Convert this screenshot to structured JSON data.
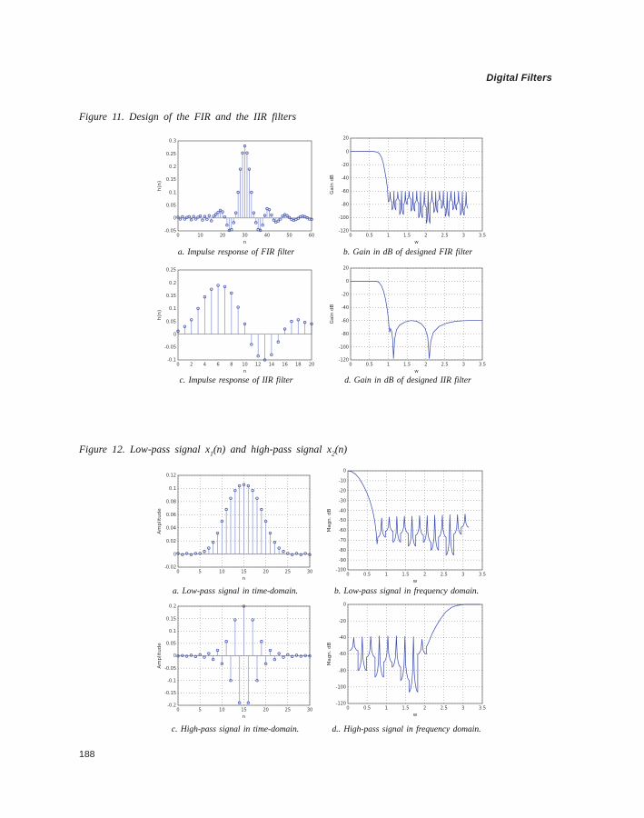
{
  "page": {
    "header": "Digital Filters",
    "page_number": "188"
  },
  "figure11": {
    "caption": "Figure 11. Design of the FIR and the IIR filters"
  },
  "figure12": {
    "caption_pre": "Figure 12. Low-pass signal x",
    "caption_sub1": "1",
    "caption_mid": "(n) and high-pass signal x",
    "caption_sub2": "2",
    "caption_post": "(n)"
  },
  "chart_data": [
    {
      "id": "fir-impulse",
      "type": "stem",
      "grid": false,
      "caption": "a. Impulse response of FIR filter",
      "xlabel": "n",
      "ylabel": "h(n)",
      "xlim": [
        0,
        60
      ],
      "ylim": [
        -0.05,
        0.3
      ],
      "xticks": [
        0,
        10,
        20,
        30,
        40,
        50,
        60
      ],
      "yticks": [
        0.3,
        0.25,
        0.2,
        0.15,
        0.1,
        0.05,
        0,
        -0.05
      ],
      "n0": 0,
      "values": [
        0.003,
        -0.004,
        0.005,
        -0.004,
        0.002,
        0.005,
        -0.007,
        0.006,
        -0.004,
        0.003,
        0.008,
        -0.008,
        0.006,
        -0.005,
        0.009,
        -0.011,
        0.007,
        0.014,
        0.022,
        0.03,
        0.024,
        0.004,
        -0.028,
        -0.048,
        -0.045,
        -0.018,
        0.02,
        0.1,
        0.19,
        0.253,
        0.28,
        0.253,
        0.19,
        0.1,
        0.02,
        -0.018,
        -0.045,
        -0.048,
        -0.028,
        0.01,
        0.036,
        0.032,
        0.012,
        -0.008,
        -0.016,
        -0.012,
        -0.004,
        0.008,
        0.013,
        0.009,
        0.002,
        -0.006,
        -0.009,
        -0.006,
        -0.001,
        0.005,
        0.008,
        0.005,
        0.001,
        -0.004,
        -0.005
      ]
    },
    {
      "id": "fir-gain",
      "type": "line",
      "grid": true,
      "caption": "b. Gain in dB of designed FIR filter",
      "xlabel": "w",
      "ylabel": "Gain dB",
      "xlim": [
        0,
        3.5
      ],
      "ylim": [
        -120,
        20
      ],
      "xticks": [
        0,
        0.5,
        1,
        1.5,
        2,
        2.5,
        3,
        3.5
      ],
      "yticks": [
        20,
        0,
        -20,
        -40,
        -60,
        -80,
        -100,
        -120
      ],
      "segments": [
        {
          "type": "points",
          "pts": [
            [
              0,
              0
            ],
            [
              0.6,
              0
            ],
            [
              0.7,
              -1
            ],
            [
              0.76,
              -3
            ],
            [
              0.82,
              -9
            ],
            [
              0.87,
              -18
            ],
            [
              0.91,
              -30
            ],
            [
              0.95,
              -44
            ],
            [
              0.98,
              -56
            ]
          ]
        },
        {
          "type": "lobes",
          "from": 1.0,
          "to": 3.12,
          "tops": [
            -61,
            -60,
            -61,
            -59.5,
            -60.5,
            -60,
            -61,
            -59.5,
            -60,
            -61,
            -60,
            -59.5,
            -61,
            -60,
            -59.5,
            -60.5,
            -60,
            -61,
            -60,
            -60.5,
            -61
          ],
          "depths": [
            -76,
            -88,
            -74,
            -95,
            -80,
            -72,
            -90,
            -78,
            -100,
            -84,
            -108,
            -78,
            -92,
            -75,
            -86,
            -98,
            -76,
            -88,
            -80,
            -96,
            -86
          ]
        }
      ]
    },
    {
      "id": "iir-impulse",
      "type": "stem",
      "grid": false,
      "caption": "c. Impulse response of IIR filter",
      "xlabel": "n",
      "ylabel": "h(n)",
      "xlim": [
        0,
        20
      ],
      "ylim": [
        -0.1,
        0.25
      ],
      "xticks": [
        0,
        2,
        4,
        6,
        8,
        10,
        12,
        14,
        16,
        18,
        20
      ],
      "yticks": [
        0.25,
        0.2,
        0.15,
        0.1,
        0.05,
        0,
        -0.05,
        -0.1
      ],
      "n0": 0,
      "values": [
        0.012,
        0.03,
        0.056,
        0.1,
        0.145,
        0.175,
        0.19,
        0.185,
        0.16,
        0.105,
        0.04,
        -0.04,
        -0.085,
        -0.105,
        -0.08,
        -0.03,
        0.02,
        0.05,
        0.056,
        0.046,
        0.04
      ]
    },
    {
      "id": "iir-gain",
      "type": "line",
      "grid": true,
      "caption": "d. Gain in dB of designed IIR filter",
      "xlabel": "w",
      "ylabel": "Gain dB",
      "xlim": [
        0,
        3.5
      ],
      "ylim": [
        -120,
        20
      ],
      "xticks": [
        0,
        0.5,
        1,
        1.5,
        2,
        2.5,
        3,
        3.5
      ],
      "yticks": [
        20,
        0,
        -20,
        -40,
        -60,
        -80,
        -100,
        -120
      ],
      "segments": [
        {
          "type": "points",
          "pts": [
            [
              0,
              0
            ],
            [
              0.68,
              0
            ],
            [
              0.75,
              -1.5
            ],
            [
              0.82,
              -7
            ],
            [
              0.88,
              -16
            ],
            [
              0.93,
              -28
            ],
            [
              0.97,
              -42
            ],
            [
              1.0,
              -55
            ],
            [
              1.02,
              -70
            ],
            [
              1.04,
              -78
            ],
            [
              1.06,
              -72
            ],
            [
              1.09,
              -76
            ],
            [
              1.12,
              -90
            ],
            [
              1.14,
              -118
            ],
            [
              1.17,
              -88
            ],
            [
              1.22,
              -74
            ],
            [
              1.3,
              -67
            ],
            [
              1.45,
              -62
            ],
            [
              1.6,
              -60
            ],
            [
              1.75,
              -61
            ],
            [
              1.88,
              -65
            ],
            [
              1.98,
              -72
            ],
            [
              2.05,
              -85
            ],
            [
              2.09,
              -118
            ],
            [
              2.13,
              -92
            ],
            [
              2.2,
              -78
            ],
            [
              2.35,
              -69
            ],
            [
              2.55,
              -64
            ],
            [
              2.8,
              -61
            ],
            [
              3.1,
              -60
            ],
            [
              3.5,
              -60
            ]
          ]
        }
      ]
    },
    {
      "id": "lp-time",
      "type": "stem",
      "grid": true,
      "caption": "a. Low-pass signal in time-domain.",
      "xlabel": "n",
      "ylabel": "Amplitude",
      "xlim": [
        0,
        30
      ],
      "ylim": [
        -0.02,
        0.12
      ],
      "xticks": [
        0,
        5,
        10,
        15,
        20,
        25,
        30
      ],
      "yticks": [
        0.12,
        0.1,
        0.08,
        0.06,
        0.04,
        0.02,
        0,
        -0.02
      ],
      "n0": 0,
      "values": [
        0.001,
        -0.001,
        0.001,
        -0.001,
        0.001,
        0.001,
        0.004,
        0.009,
        0.018,
        0.032,
        0.05,
        0.068,
        0.085,
        0.097,
        0.104,
        0.106,
        0.104,
        0.097,
        0.085,
        0.068,
        0.05,
        0.032,
        0.018,
        0.009,
        0.004,
        0.001,
        -0.001,
        0.001,
        -0.001,
        0.001,
        -0.001
      ]
    },
    {
      "id": "lp-freq",
      "type": "line",
      "grid": true,
      "caption": "b. Low-pass signal in frequency domain.",
      "xlabel": "w",
      "ylabel": "Magn. dB",
      "xlim": [
        0,
        3.5
      ],
      "ylim": [
        -100,
        0
      ],
      "xticks": [
        0,
        0.5,
        1,
        1.5,
        2,
        2.5,
        3,
        3.5
      ],
      "yticks": [
        0,
        -10,
        -20,
        -30,
        -40,
        -50,
        -60,
        -70,
        -80,
        -90,
        -100
      ],
      "segments": [
        {
          "type": "points",
          "pts": [
            [
              0,
              0
            ],
            [
              0.1,
              -0.8
            ],
            [
              0.2,
              -3.5
            ],
            [
              0.3,
              -8
            ],
            [
              0.4,
              -14.5
            ],
            [
              0.5,
              -22.5
            ],
            [
              0.58,
              -31
            ],
            [
              0.65,
              -41
            ],
            [
              0.7,
              -51
            ],
            [
              0.735,
              -62
            ],
            [
              0.76,
              -74
            ]
          ]
        },
        {
          "type": "lobes",
          "from": 0.78,
          "to": 3.15,
          "tops": [
            -47.5,
            -46.5,
            -46,
            -45.5,
            -45.5,
            -45,
            -45,
            -44.5,
            -44.5,
            -44,
            -44,
            -43.5
          ],
          "depths": [
            -67,
            -61,
            -72,
            -63,
            -76,
            -65,
            -72,
            -80,
            -67,
            -85,
            -64,
            -57
          ]
        }
      ]
    },
    {
      "id": "hp-time",
      "type": "stem",
      "grid": true,
      "caption": "c. High-pass signal in time-domain.",
      "xlabel": "n",
      "ylabel": "Amplitude",
      "xlim": [
        0,
        30
      ],
      "ylim": [
        -0.2,
        0.2
      ],
      "xticks": [
        0,
        5,
        10,
        15,
        20,
        25,
        30
      ],
      "yticks": [
        0.2,
        0.15,
        0.1,
        0.05,
        0,
        -0.05,
        -0.1,
        -0.15,
        -0.2
      ],
      "n0": 0,
      "values": [
        -0.001,
        0.001,
        -0.002,
        0.002,
        -0.003,
        0.004,
        -0.006,
        0.009,
        -0.015,
        0.022,
        -0.032,
        0.058,
        -0.1,
        0.145,
        -0.19,
        0.2,
        -0.19,
        0.145,
        -0.1,
        0.058,
        -0.032,
        0.022,
        -0.015,
        0.009,
        -0.006,
        0.004,
        -0.003,
        0.002,
        -0.002,
        0.001,
        -0.001
      ]
    },
    {
      "id": "hp-freq",
      "type": "line",
      "grid": true,
      "caption": "d.. High-pass signal in frequency domain.",
      "xlabel": "w",
      "ylabel": "Magn. dB",
      "xlim": [
        0,
        3.5
      ],
      "ylim": [
        -120,
        0
      ],
      "xticks": [
        0,
        0.5,
        1,
        1.5,
        2,
        2.5,
        3,
        3.5
      ],
      "yticks": [
        0,
        -20,
        -40,
        -60,
        -80,
        -100,
        -120
      ],
      "segments": [
        {
          "type": "lobes",
          "from": 0.04,
          "to": 2.04,
          "tops": [
            -40,
            -39,
            -38.5,
            -38,
            -38,
            -38,
            -38.5,
            -39,
            -42
          ],
          "depths": [
            -56,
            -80,
            -64,
            -88,
            -70,
            -76,
            -92,
            -106,
            -60
          ]
        },
        {
          "type": "points",
          "pts": [
            [
              2.04,
              -52
            ],
            [
              2.12,
              -44
            ],
            [
              2.2,
              -35
            ],
            [
              2.3,
              -26
            ],
            [
              2.42,
              -17
            ],
            [
              2.55,
              -9
            ],
            [
              2.7,
              -3.5
            ],
            [
              2.85,
              -1.2
            ],
            [
              3.0,
              -0.2
            ],
            [
              3.1,
              0
            ],
            [
              3.45,
              0
            ]
          ]
        }
      ]
    }
  ]
}
